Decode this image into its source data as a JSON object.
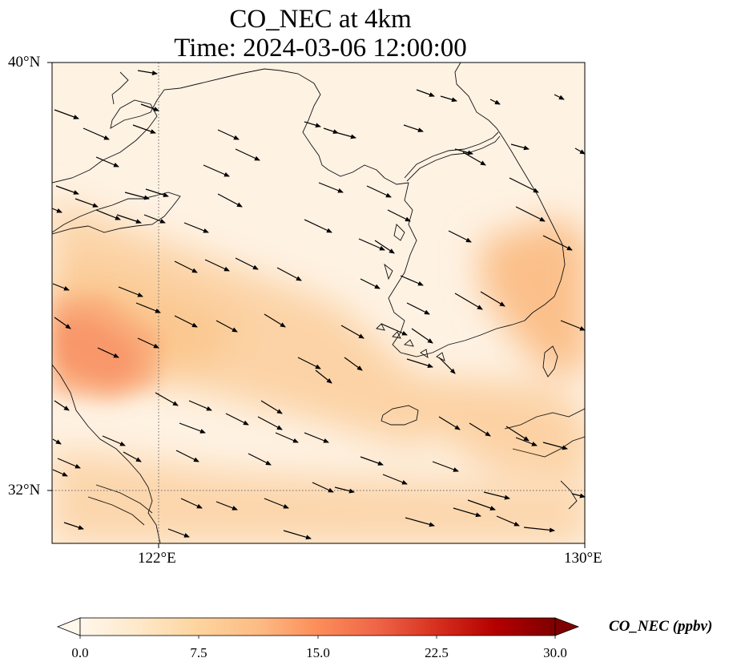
{
  "title_line1": "CO_NEC at 4km",
  "title_line2": "Time: 2024-03-06 12:00:00",
  "lat_ticks": [
    "40°N",
    "32°N"
  ],
  "lon_ticks": [
    "122°E",
    "130°E"
  ],
  "colorbar": {
    "label": "CO_NEC (ppbv)",
    "ticks": [
      "0.0",
      "7.5",
      "15.0",
      "22.5",
      "30.0"
    ],
    "range": [
      0,
      30
    ],
    "extend": "both",
    "colormap": "OrRd",
    "colors": [
      "#fff7ec",
      "#fee8c8",
      "#fdd49e",
      "#fdbb84",
      "#fc8d59",
      "#ef6548",
      "#d7301f",
      "#b30000",
      "#7f0000"
    ]
  },
  "map": {
    "extent_lon": [
      120,
      130
    ],
    "extent_lat": [
      31,
      40
    ],
    "gridlines_lon": [
      122
    ],
    "gridlines_lat": [
      32
    ],
    "background_color": "#fef2e3",
    "wind_direction": "mostly westerly to north-westerly",
    "plumes": [
      {
        "area": "Shandong / west Yellow Sea",
        "level_ppbv": 14,
        "color": "#f5845c"
      },
      {
        "area": "Yellow Sea band",
        "level_ppbv": 6,
        "color": "#fcd3a6"
      },
      {
        "area": "Southeast Korea",
        "level_ppbv": 7,
        "color": "#fbc896"
      },
      {
        "area": "South of Korea / East China Sea",
        "level_ppbv": 5,
        "color": "#fcd8ae"
      },
      {
        "area": "Southern edge",
        "level_ppbv": 5,
        "color": "#fcdcb4"
      }
    ]
  }
}
